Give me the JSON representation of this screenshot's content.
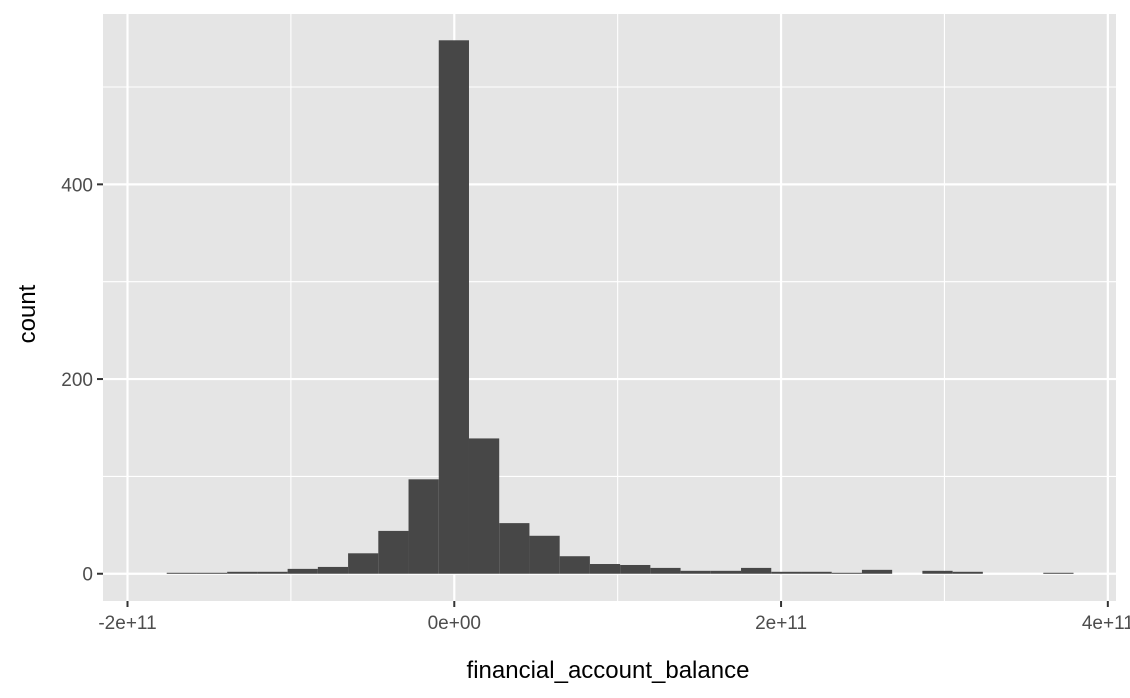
{
  "chart_data": {
    "type": "bar",
    "title": "",
    "xlabel": "financial_account_balance",
    "ylabel": "count",
    "xlim": [
      -215000000000.0,
      405000000000.0
    ],
    "ylim": [
      -28,
      575
    ],
    "x_ticks": [
      {
        "value": -200000000000.0,
        "label": "-2e+11"
      },
      {
        "value": 0,
        "label": "0e+00"
      },
      {
        "value": 200000000000.0,
        "label": "2e+11"
      },
      {
        "value": 400000000000.0,
        "label": "4e+11"
      }
    ],
    "y_ticks": [
      {
        "value": 0,
        "label": "0"
      },
      {
        "value": 200,
        "label": "200"
      },
      {
        "value": 400,
        "label": "400"
      }
    ],
    "x_minor_gridlines": [
      -100000000000.0,
      100000000000.0,
      300000000000.0
    ],
    "y_minor_gridlines": [
      100,
      300,
      500
    ],
    "grid": true,
    "colors": {
      "panel_background": "#e5e5e5",
      "gridline": "#ffffff",
      "bar_fill": "#474747",
      "tick_mark": "#333333"
    },
    "bin_width": 18500000000.0,
    "bins": [
      {
        "x_start": -176000000000.0,
        "count": 1
      },
      {
        "x_start": -157500000000.0,
        "count": 1
      },
      {
        "x_start": -139000000000.0,
        "count": 2
      },
      {
        "x_start": -120500000000.0,
        "count": 2
      },
      {
        "x_start": -102000000000.0,
        "count": 5
      },
      {
        "x_start": -83500000000.0,
        "count": 7
      },
      {
        "x_start": -65000000000.0,
        "count": 21
      },
      {
        "x_start": -46500000000.0,
        "count": 44
      },
      {
        "x_start": -28000000000.0,
        "count": 97
      },
      {
        "x_start": -9500000000.0,
        "count": 548
      },
      {
        "x_start": 9000000000.0,
        "count": 139
      },
      {
        "x_start": 27500000000.0,
        "count": 52
      },
      {
        "x_start": 46000000000.0,
        "count": 39
      },
      {
        "x_start": 64500000000.0,
        "count": 18
      },
      {
        "x_start": 83000000000.0,
        "count": 10
      },
      {
        "x_start": 101500000000.0,
        "count": 9
      },
      {
        "x_start": 120000000000.0,
        "count": 6
      },
      {
        "x_start": 138500000000.0,
        "count": 3
      },
      {
        "x_start": 157000000000.0,
        "count": 3
      },
      {
        "x_start": 175500000000.0,
        "count": 6
      },
      {
        "x_start": 194000000000.0,
        "count": 2
      },
      {
        "x_start": 212500000000.0,
        "count": 2
      },
      {
        "x_start": 231000000000.0,
        "count": 1
      },
      {
        "x_start": 249500000000.0,
        "count": 4
      },
      {
        "x_start": 268000000000.0,
        "count": 0
      },
      {
        "x_start": 286500000000.0,
        "count": 3
      },
      {
        "x_start": 305000000000.0,
        "count": 2
      },
      {
        "x_start": 323500000000.0,
        "count": 0
      },
      {
        "x_start": 342000000000.0,
        "count": 0
      },
      {
        "x_start": 360500000000.0,
        "count": 1
      }
    ]
  }
}
